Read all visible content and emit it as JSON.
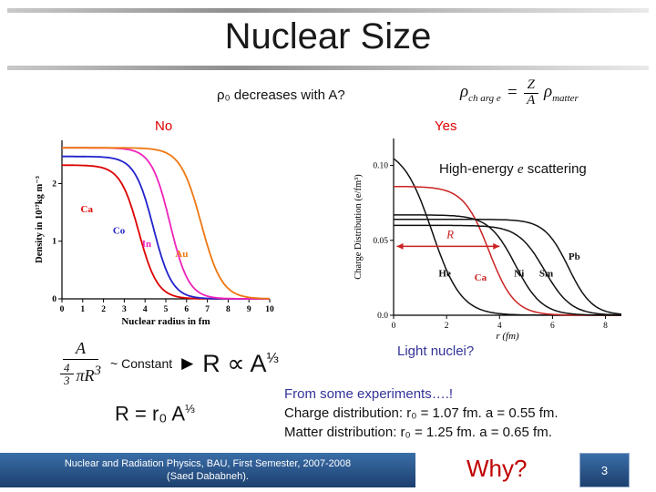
{
  "slide": {
    "title": "Nuclear Size",
    "question": "ρ₀ decreases with A?",
    "no_label": "No",
    "yes_label": "Yes",
    "high_energy_pre": "High-energy ",
    "high_energy_e": "e",
    "high_energy_post": " scattering",
    "light_nuclei": "Light nuclei?",
    "charge_formula": {
      "rho_ch": "ρ",
      "sub_ch": "ch arg e",
      "equals": "=",
      "numerator": "Z",
      "denominator": "A",
      "rho_matter": "ρ",
      "sub_matter": "matter"
    },
    "const_formula": {
      "numerator": "A",
      "den_frac_num": "4",
      "den_frac_den": "3",
      "den_pi": "πR",
      "den_exp": "3",
      "approx": "~ Constant",
      "arrow": "▶",
      "result_main": "R ∝ A",
      "result_exp": "⅓"
    },
    "r_formula": {
      "main": "R = r₀ A",
      "exp": "⅓"
    },
    "experiments": {
      "line1": "From some experiments….!",
      "line2": "Charge distribution: r₀ = 1.07 fm. a = 0.55 fm.",
      "line3": "Matter distribution:   r₀ = 1.25 fm. a = 0.65 fm."
    },
    "footer": {
      "line1": "Nuclear and Radiation Physics, BAU, First Semester, 2007-2008",
      "line2": "(Saed Dababneh).",
      "why": "Why?",
      "page": "3"
    }
  },
  "colors": {
    "accent_red": "#dd0000",
    "dark_blue_text": "#333399",
    "why_red": "#c00000",
    "footer_blue_dark": "#1d3f6e",
    "footer_blue_light": "#3a6ea8"
  },
  "chart_data": [
    {
      "type": "line",
      "title": "Nuclear matter density vs radius",
      "xlabel": "Nuclear radius in fm",
      "ylabel": "Density in 10¹⁷kg m⁻³",
      "xlim": [
        0,
        10
      ],
      "ylim": [
        0,
        2.75
      ],
      "xticks": [
        0,
        1,
        2,
        3,
        4,
        5,
        6,
        7,
        8,
        9,
        10
      ],
      "xtick_labels": [
        "0",
        "1",
        "2",
        "3",
        "4",
        "5",
        "6",
        "7",
        "8",
        "9",
        "10"
      ],
      "yticks": [
        0,
        1,
        2
      ],
      "ytick_labels": [
        "0",
        "1",
        "2"
      ],
      "grid": false,
      "bold_axes": true,
      "xlabel_italic": false,
      "stroke_width": 1.8,
      "model": "fermi",
      "series": [
        {
          "name": "Ca",
          "color": "#dd0000",
          "plateau": 2.32,
          "half_radius": 3.7,
          "diffuseness": 0.45
        },
        {
          "name": "Co",
          "color": "#2222cc",
          "plateau": 2.47,
          "half_radius": 4.4,
          "diffuseness": 0.45
        },
        {
          "name": "In",
          "color": "#ee22bb",
          "plateau": 2.62,
          "half_radius": 5.2,
          "diffuseness": 0.45
        },
        {
          "name": "Au",
          "color": "#ee7711",
          "plateau": 2.62,
          "half_radius": 6.7,
          "diffuseness": 0.5
        }
      ],
      "series_labels": [
        {
          "text": "Ca",
          "x": 0.9,
          "y": 1.5,
          "color": "#dd0000"
        },
        {
          "text": "Co",
          "x": 2.45,
          "y": 1.13,
          "color": "#2222cc"
        },
        {
          "text": "In",
          "x": 3.85,
          "y": 0.9,
          "color": "#ee22bb"
        },
        {
          "text": "Au",
          "x": 5.45,
          "y": 0.73,
          "color": "#ee7711"
        }
      ]
    },
    {
      "type": "line",
      "title": "Nuclear charge distribution vs radius",
      "xlabel": "r (fm)",
      "ylabel": "Charge Distribution (e/fm³)",
      "xlim": [
        0,
        8.6
      ],
      "ylim": [
        0,
        0.118
      ],
      "xticks": [
        0,
        2,
        4,
        6,
        8
      ],
      "xtick_labels": [
        "0",
        "2",
        "4",
        "6",
        "8"
      ],
      "yticks": [
        0,
        0.05,
        0.1
      ],
      "ytick_labels": [
        "0.0",
        "0.05",
        "0.10"
      ],
      "grid": false,
      "bold_axes": false,
      "xlabel_italic": true,
      "stroke_width": 1.5,
      "model": "fermi",
      "series": [
        {
          "name": "He",
          "color": "#111111",
          "plateau": 0.112,
          "half_radius": 1.45,
          "diffuseness": 0.55
        },
        {
          "name": "Ca",
          "color": "#cc2222",
          "plateau": 0.086,
          "half_radius": 3.6,
          "diffuseness": 0.48
        },
        {
          "name": "Ni",
          "color": "#111111",
          "plateau": 0.067,
          "half_radius": 4.6,
          "diffuseness": 0.5
        },
        {
          "name": "Sm",
          "color": "#111111",
          "plateau": 0.06,
          "half_radius": 5.7,
          "diffuseness": 0.5
        },
        {
          "name": "Pb",
          "color": "#111111",
          "plateau": 0.064,
          "half_radius": 6.6,
          "diffuseness": 0.45
        }
      ],
      "series_labels": [
        {
          "text": "He",
          "x": 1.7,
          "y": 0.026,
          "color": "#111111"
        },
        {
          "text": "Ca",
          "x": 3.05,
          "y": 0.023,
          "color": "#cc2222"
        },
        {
          "text": "Ni",
          "x": 4.55,
          "y": 0.026,
          "color": "#111111"
        },
        {
          "text": "Sm",
          "x": 5.5,
          "y": 0.026,
          "color": "#111111"
        },
        {
          "text": "Pb",
          "x": 6.6,
          "y": 0.037,
          "color": "#111111"
        }
      ],
      "arrow": {
        "x1": 0.12,
        "x2": 4.0,
        "y": 0.046,
        "color": "#cc2222",
        "label": "R",
        "label_x": 2.0,
        "label_y": 0.0515
      }
    }
  ]
}
